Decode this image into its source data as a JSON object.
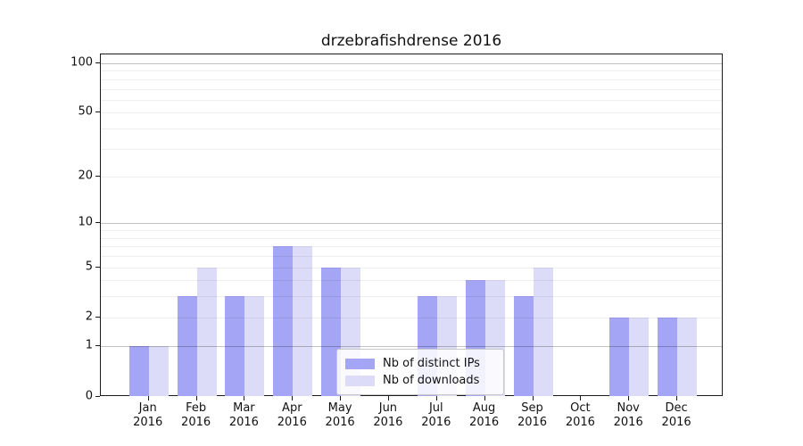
{
  "title": "drzebrafishdrense 2016",
  "legend": {
    "items": [
      {
        "label": "Nb of distinct IPs",
        "color": "#a5a5f5"
      },
      {
        "label": "Nb of downloads",
        "color": "#dcdcf8"
      }
    ],
    "position": "inside-bottom-center"
  },
  "chart_data": {
    "type": "bar",
    "title": "drzebrafishdrense 2016",
    "xlabel": "",
    "ylabel": "",
    "categories": [
      "Jan 2016",
      "Feb 2016",
      "Mar 2016",
      "Apr 2016",
      "May 2016",
      "Jun 2016",
      "Jul 2016",
      "Aug 2016",
      "Sep 2016",
      "Oct 2016",
      "Nov 2016",
      "Dec 2016"
    ],
    "x_tick_months": [
      "Jan",
      "Feb",
      "Mar",
      "Apr",
      "May",
      "Jun",
      "Jul",
      "Aug",
      "Sep",
      "Oct",
      "Nov",
      "Dec"
    ],
    "x_tick_year": "2016",
    "series": [
      {
        "name": "Nb of distinct IPs",
        "color": "#a5a5f5",
        "values": [
          1,
          3,
          3,
          7,
          5,
          0,
          3,
          4,
          3,
          0,
          2,
          2
        ]
      },
      {
        "name": "Nb of downloads",
        "color": "#dcdcf8",
        "values": [
          1,
          5,
          3,
          7,
          5,
          0,
          3,
          4,
          5,
          0,
          2,
          2
        ]
      }
    ],
    "yscale": "log1p",
    "ylim": [
      0,
      115
    ],
    "yticks": [
      0,
      1,
      2,
      5,
      10,
      20,
      50,
      100
    ],
    "major_gridlines": [
      1,
      10,
      100
    ],
    "minor_gridlines": [
      2,
      3,
      4,
      5,
      6,
      7,
      8,
      9,
      20,
      30,
      40,
      50,
      60,
      70,
      80,
      90
    ],
    "grid": true,
    "legend_position": "lower center"
  }
}
